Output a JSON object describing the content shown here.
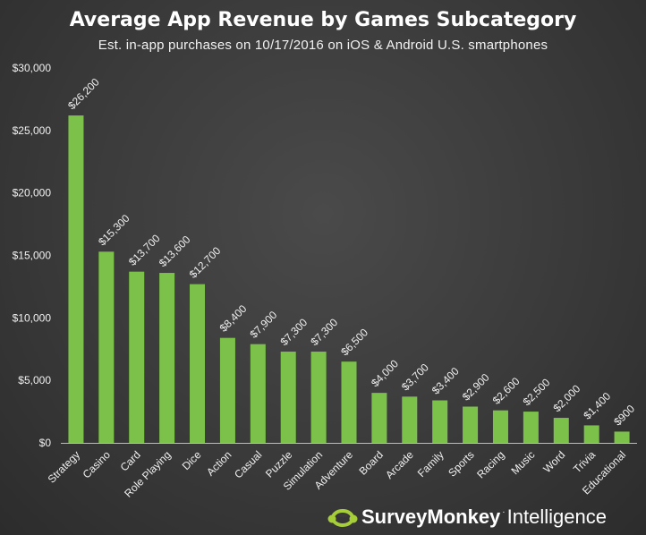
{
  "chart_data": {
    "type": "bar",
    "title": "Average App Revenue by Games Subcategory",
    "subtitle": "Est. in-app purchases on 10/17/2016 on iOS & Android U.S. smartphones",
    "categories": [
      "Strategy",
      "Casino",
      "Card",
      "Role Playing",
      "Dice",
      "Action",
      "Casual",
      "Puzzle",
      "Simulation",
      "Adventure",
      "Board",
      "Arcade",
      "Family",
      "Sports",
      "Racing",
      "Music",
      "Word",
      "Trivia",
      "Educational"
    ],
    "values": [
      26200,
      15300,
      13700,
      13600,
      12700,
      8400,
      7900,
      7300,
      7300,
      6500,
      4000,
      3700,
      3400,
      2900,
      2600,
      2500,
      2000,
      1400,
      900
    ],
    "data_labels": [
      "$26,200",
      "$15,300",
      "$13,700",
      "$13,600",
      "$12,700",
      "$8,400",
      "$7,900",
      "$7,300",
      "$7,300",
      "$6,500",
      "$4,000",
      "$3,700",
      "$3,400",
      "$2,900",
      "$2,600",
      "$2,500",
      "$2,000",
      "$1,400",
      "$900"
    ],
    "y_ticks": [
      0,
      5000,
      10000,
      15000,
      20000,
      25000,
      30000
    ],
    "y_tick_labels": [
      "$0",
      "$5,000",
      "$10,000",
      "$15,000",
      "$20,000",
      "$25,000",
      "$30,000"
    ],
    "ylim": [
      0,
      30000
    ],
    "xlabel": "",
    "ylabel": "",
    "grid": false,
    "bar_color": "#7cc24a"
  },
  "branding": {
    "name": "SurveyMonkey",
    "trademark": "·",
    "suffix": "Intelligence",
    "accent": "#a6ce39"
  }
}
